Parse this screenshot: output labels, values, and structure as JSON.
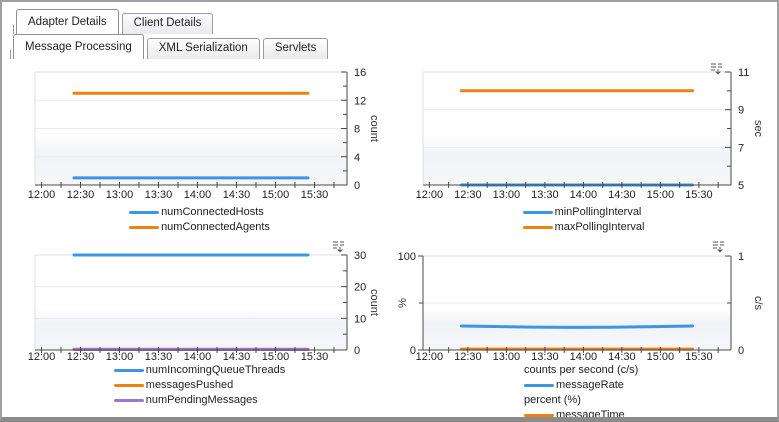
{
  "tabs": {
    "primary": [
      {
        "label": "Adapter Details",
        "active": true
      },
      {
        "label": "Client Details",
        "active": false
      }
    ],
    "secondary": [
      {
        "label": "Message Processing",
        "active": true
      },
      {
        "label": "XML Serialization",
        "active": false
      },
      {
        "label": "Servlets",
        "active": false
      }
    ]
  },
  "colors": {
    "blue": "#3d95e5",
    "orange": "#ee8210",
    "purple": "#9b79d2",
    "axis": "#4a4a4a",
    "grid": "#e8eaee",
    "text": "#1f1f1f",
    "border_light": "#dcdfe4"
  },
  "icons": {
    "chart_menu": "legend-menu (three dashed lines with down caret)"
  },
  "time_axis": {
    "domain_minutes": [
      715,
      955
    ],
    "tick_start": 720,
    "tick_end": 945,
    "minor_step": 15,
    "label_step": 30,
    "labels": [
      "12:00",
      "12:30",
      "13:00",
      "13:30",
      "14:00",
      "14:30",
      "15:00",
      "15:30"
    ]
  },
  "chart_data": [
    {
      "name": "connected-hosts-agents",
      "type": "line",
      "has_menu_icon": false,
      "y_right": {
        "label": "count",
        "min": 0,
        "max": 16,
        "majors": [
          0,
          4,
          8,
          12,
          16
        ],
        "minor_step": 2,
        "grid": [
          4,
          8,
          12
        ]
      },
      "series": [
        {
          "name": "numConnectedHosts",
          "color": "blue",
          "axis": "right",
          "points": [
            [
              745,
              1
            ],
            [
              925,
              1
            ]
          ]
        },
        {
          "name": "numConnectedAgents",
          "color": "orange",
          "axis": "right",
          "points": [
            [
              745,
              13
            ],
            [
              925,
              13
            ]
          ]
        }
      ],
      "legend": [
        {
          "type": "item",
          "label": "numConnectedHosts",
          "color": "blue"
        },
        {
          "type": "item",
          "label": "numConnectedAgents",
          "color": "orange"
        }
      ]
    },
    {
      "name": "polling-interval",
      "type": "line",
      "has_menu_icon": true,
      "y_right": {
        "label": "sec",
        "min": 5,
        "max": 11,
        "majors": [
          5,
          7,
          9,
          11
        ],
        "minor_step": 1,
        "grid": [
          7,
          9
        ]
      },
      "series": [
        {
          "name": "minPollingInterval",
          "color": "blue",
          "axis": "right",
          "points": [
            [
              745,
              5
            ],
            [
              925,
              5
            ]
          ]
        },
        {
          "name": "maxPollingInterval",
          "color": "orange",
          "axis": "right",
          "points": [
            [
              745,
              10
            ],
            [
              925,
              10
            ]
          ]
        }
      ],
      "legend": [
        {
          "type": "item",
          "label": "minPollingInterval",
          "color": "blue"
        },
        {
          "type": "item",
          "label": "maxPollingInterval",
          "color": "orange"
        }
      ]
    },
    {
      "name": "queue-threads-messages",
      "type": "line",
      "has_menu_icon": true,
      "y_right": {
        "label": "count",
        "min": 0,
        "max": 30,
        "majors": [
          0,
          10,
          20,
          30
        ],
        "minor_step": 5,
        "grid": [
          10,
          20
        ]
      },
      "series": [
        {
          "name": "numIncomingQueueThreads",
          "color": "blue",
          "axis": "right",
          "points": [
            [
              745,
              30
            ],
            [
              925,
              30
            ]
          ]
        },
        {
          "name": "messagesPushed",
          "color": "orange",
          "axis": "right",
          "points": [
            [
              745,
              0.15
            ],
            [
              925,
              0.15
            ]
          ]
        },
        {
          "name": "numPendingMessages",
          "color": "purple",
          "axis": "right",
          "points": [
            [
              745,
              0.25
            ],
            [
              925,
              0.25
            ]
          ]
        }
      ],
      "legend": [
        {
          "type": "item",
          "label": "numIncomingQueueThreads",
          "color": "blue"
        },
        {
          "type": "item",
          "label": "messagesPushed",
          "color": "orange"
        },
        {
          "type": "item",
          "label": "numPendingMessages",
          "color": "purple"
        }
      ]
    },
    {
      "name": "message-rate-time",
      "type": "line",
      "has_menu_icon": true,
      "y_left": {
        "label": "%",
        "min": 0,
        "max": 100,
        "majors": [
          0,
          100
        ],
        "minor_step": 50,
        "grid": [
          50
        ]
      },
      "y_right": {
        "label": "c/s",
        "min": 0,
        "max": 1,
        "majors": [
          0,
          1
        ],
        "minor_step": 0.5,
        "grid": []
      },
      "series": [
        {
          "name": "messageRate",
          "color": "blue",
          "axis": "right",
          "points": [
            [
              745,
              0.255
            ],
            [
              770,
              0.25
            ],
            [
              800,
              0.244
            ],
            [
              830,
              0.24
            ],
            [
              860,
              0.243
            ],
            [
              890,
              0.248
            ],
            [
              925,
              0.255
            ]
          ]
        },
        {
          "name": "messageTime",
          "color": "orange",
          "axis": "left",
          "points": [
            [
              745,
              1
            ],
            [
              925,
              1
            ]
          ]
        }
      ],
      "legend": [
        {
          "type": "group",
          "label": "counts per second (c/s)"
        },
        {
          "type": "item",
          "label": "messageRate",
          "color": "blue"
        },
        {
          "type": "group",
          "label": "percent (%)"
        },
        {
          "type": "item",
          "label": "messageTime",
          "color": "orange"
        }
      ]
    }
  ]
}
